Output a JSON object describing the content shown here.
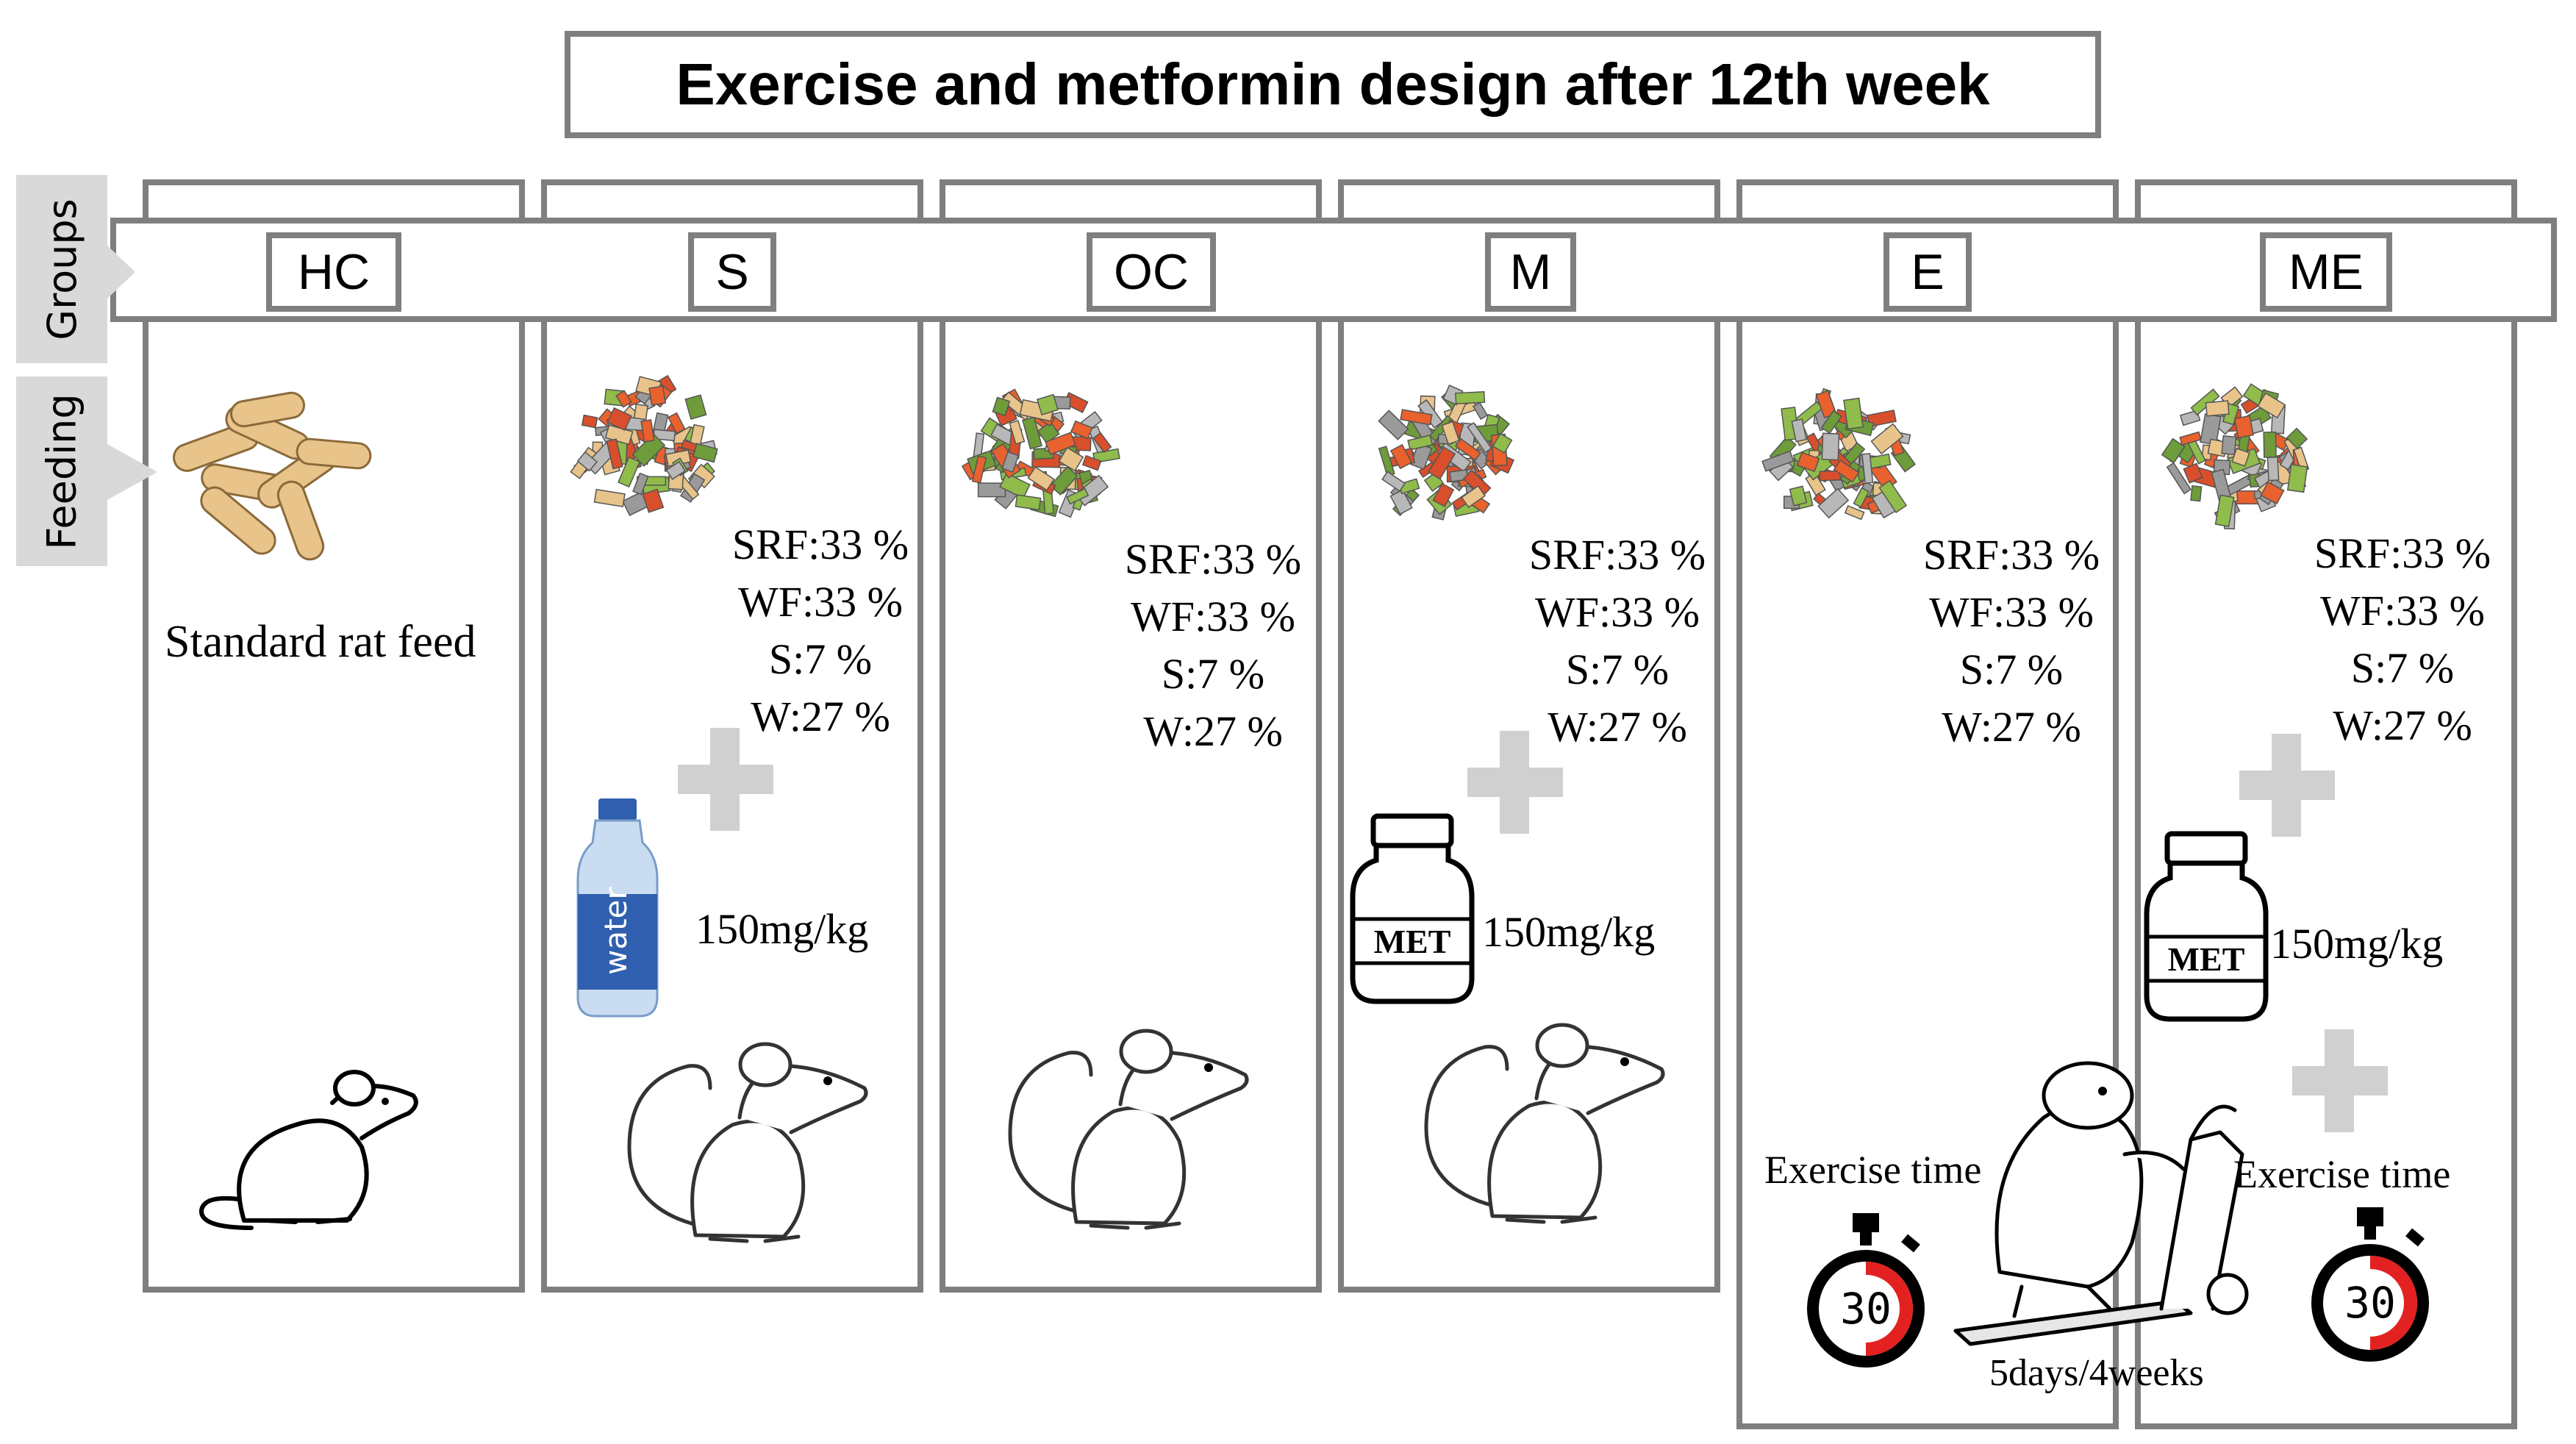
{
  "title": "Exercise and metformin design after 12th week",
  "side_labels": {
    "groups": "Groups",
    "feeding": "Feeding"
  },
  "groups": [
    {
      "label": "HC",
      "feed_text": "Standard rat feed"
    },
    {
      "label": "S",
      "diet": [
        "SRF:33 %",
        "WF:33 %",
        "S:7 %",
        "W:27 %"
      ],
      "supplement": "water",
      "dose": "150mg/kg"
    },
    {
      "label": "OC",
      "diet": [
        "SRF:33 %",
        "WF:33 %",
        "S:7 %",
        "W:27 %"
      ]
    },
    {
      "label": "M",
      "diet": [
        "SRF:33 %",
        "WF:33 %",
        "S:7 %",
        "W:27 %"
      ],
      "supplement_label": "MET",
      "dose": "150mg/kg"
    },
    {
      "label": "E",
      "diet": [
        "SRF:33 %",
        "WF:33 %",
        "S:7 %",
        "W:27 %"
      ],
      "exercise_label": "Exercise time",
      "timer": "30"
    },
    {
      "label": "ME",
      "diet": [
        "SRF:33 %",
        "WF:33 %",
        "S:7 %",
        "W:27 %"
      ],
      "supplement_label": "MET",
      "dose": "150mg/kg",
      "exercise_label": "Exercise time",
      "timer": "30"
    }
  ],
  "exercise_schedule": "5days/4weeks",
  "colors": {
    "border": "#7f7f7f",
    "tab": "#d9d9d9",
    "plus": "#d0d0d0",
    "timer_red": "#e32121",
    "bottle_blue": "#2f5fae"
  }
}
